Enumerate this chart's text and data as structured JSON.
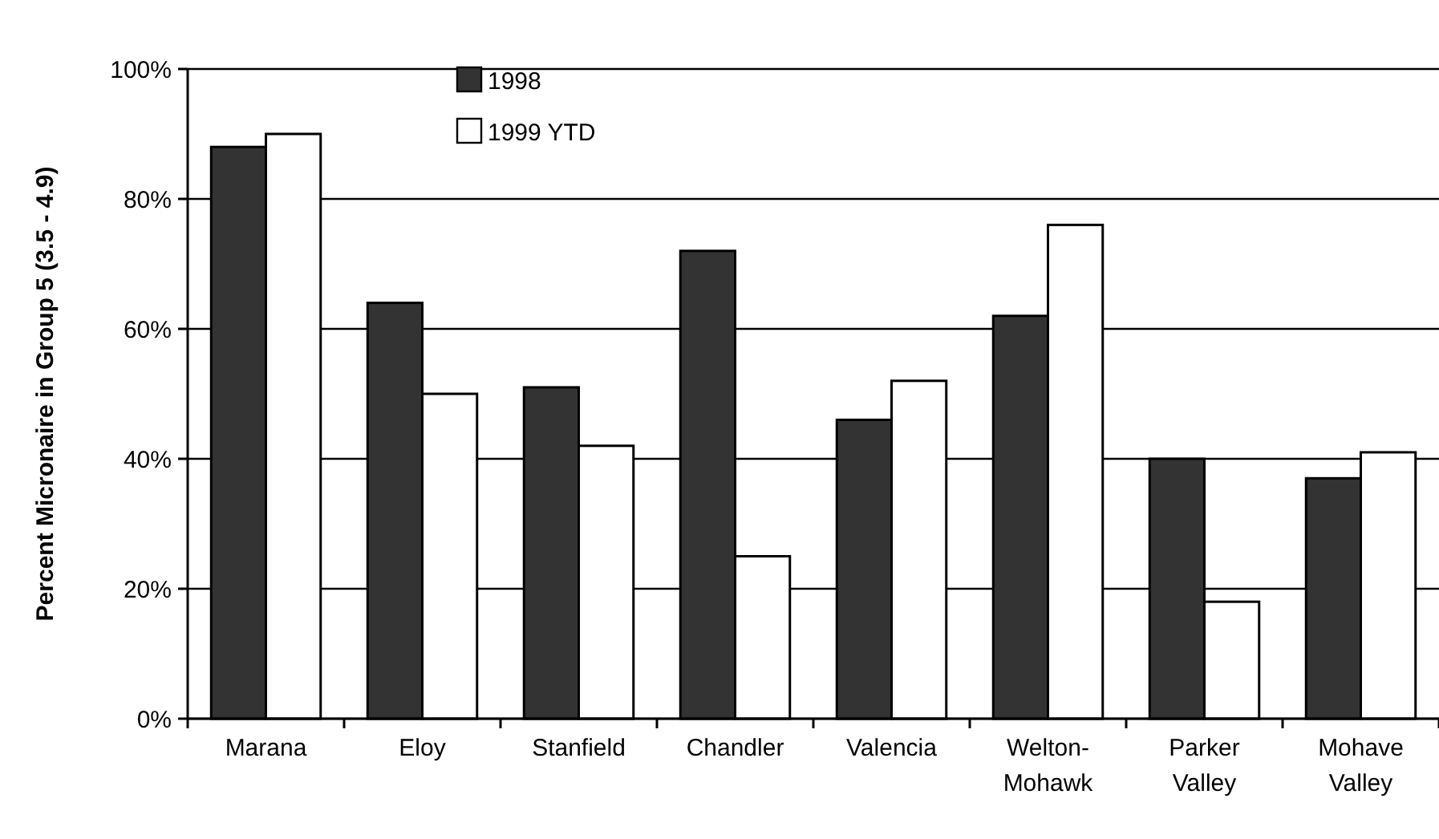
{
  "chart_data": {
    "type": "bar",
    "ylabel": "Percent Micronaire in Group 5 (3.5 - 4.9)",
    "categories": [
      "Marana",
      "Eloy",
      "Stanfield",
      "Chandler",
      "Valencia",
      "Welton-\nMohawk",
      "Parker\nValley",
      "Mohave\nValley"
    ],
    "series": [
      {
        "name": "1998",
        "color": "#333333",
        "values": [
          88,
          64,
          51,
          72,
          46,
          62,
          40,
          37
        ]
      },
      {
        "name": "1999 YTD",
        "color": "#ffffff",
        "values": [
          90,
          50,
          42,
          25,
          52,
          76,
          18,
          41
        ]
      }
    ],
    "ylim": [
      0,
      100
    ],
    "yticks": [
      {
        "value": 0,
        "label": "0%"
      },
      {
        "value": 20,
        "label": "20%"
      },
      {
        "value": 40,
        "label": "40%"
      },
      {
        "value": 60,
        "label": "60%"
      },
      {
        "value": 80,
        "label": "80%"
      },
      {
        "value": 100,
        "label": "100%"
      }
    ],
    "grid": "y",
    "legend": "top"
  }
}
